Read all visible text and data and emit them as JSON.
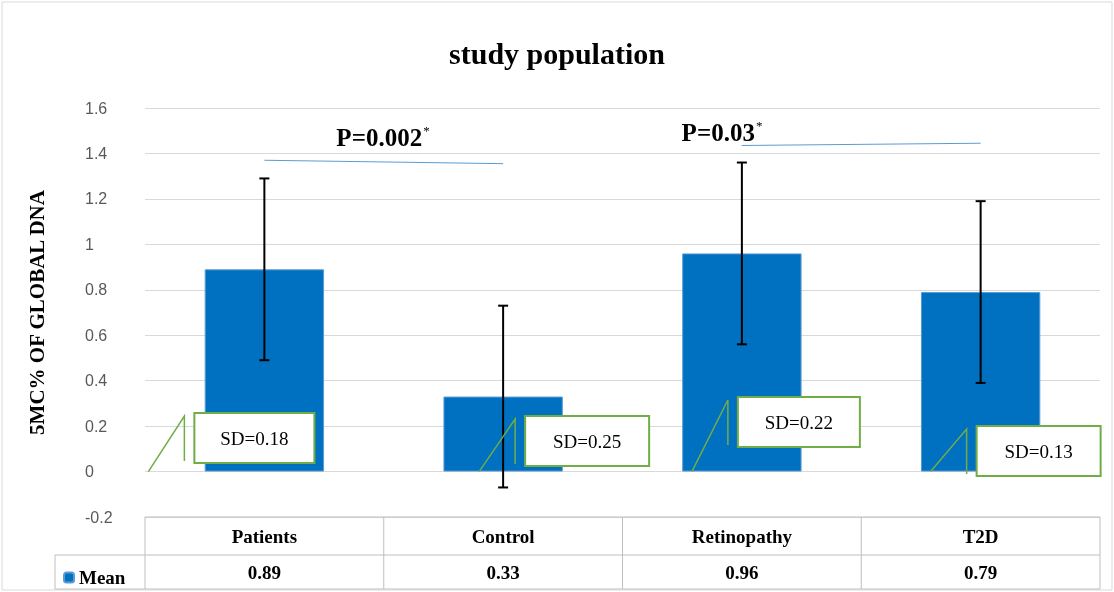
{
  "chart_data": {
    "type": "bar",
    "title": "study population",
    "ylabel": "5MC% OF GLOBAL DNA",
    "categories": [
      "Patients",
      "Control",
      "Retinopathy",
      "T2D"
    ],
    "series": [
      {
        "name": "Mean",
        "color": "#0070c0",
        "values": [
          0.89,
          0.33,
          0.96,
          0.79
        ],
        "errors": [
          0.4,
          0.4,
          0.4,
          0.4
        ]
      }
    ],
    "ylim": [
      -0.2,
      1.6
    ],
    "yticks": [
      -0.2,
      0,
      0.2,
      0.4,
      0.6,
      0.8,
      1,
      1.2,
      1.4,
      1.6
    ],
    "grid": "y",
    "legend": "bottom left",
    "data_labels": true,
    "annotations": [
      "P=0.002$^{*}$",
      "P=0.03$^{*}$",
      "SD=0.18",
      "SD=0.25",
      "SD=0.22",
      "SD=0.13"
    ]
  }
}
